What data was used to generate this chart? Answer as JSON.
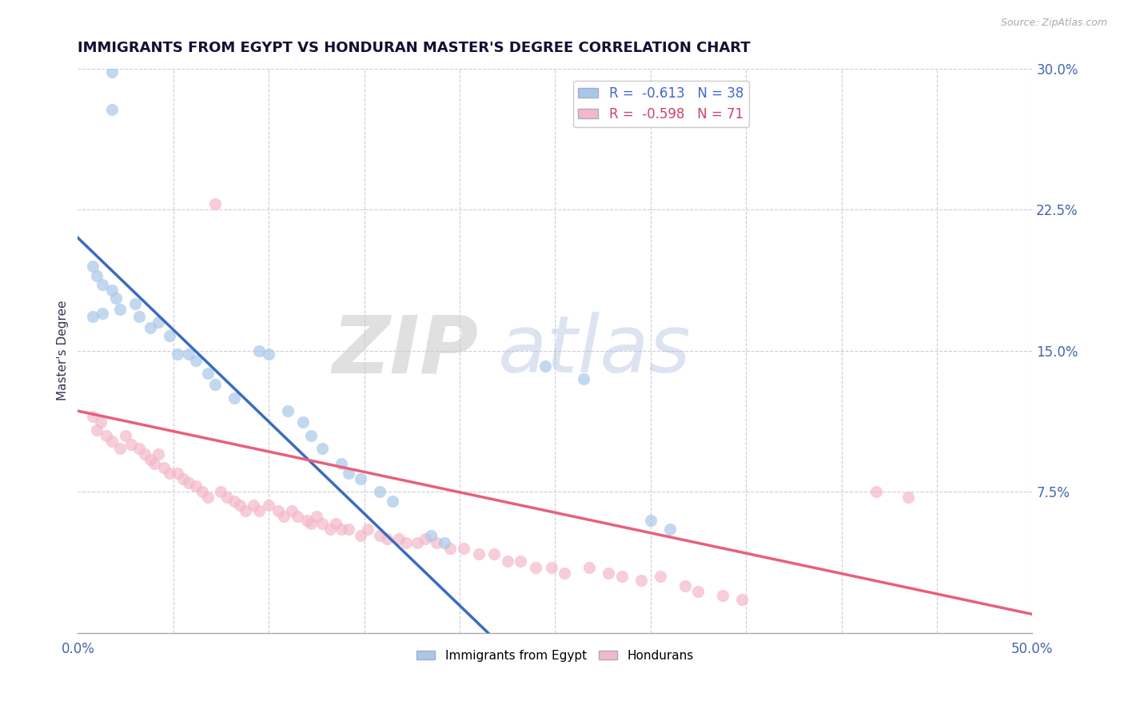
{
  "title": "IMMIGRANTS FROM EGYPT VS HONDURAN MASTER'S DEGREE CORRELATION CHART",
  "source_text": "Source: ZipAtlas.com",
  "ylabel": "Master's Degree",
  "xlim": [
    0.0,
    0.5
  ],
  "ylim": [
    0.0,
    0.3
  ],
  "xticks": [
    0.0,
    0.05,
    0.1,
    0.15,
    0.2,
    0.25,
    0.3,
    0.35,
    0.4,
    0.45,
    0.5
  ],
  "yticks_right": [
    0.0,
    0.075,
    0.15,
    0.225,
    0.3
  ],
  "ytick_labels_right": [
    "",
    "7.5%",
    "15.0%",
    "22.5%",
    "30.0%"
  ],
  "legend_r1": "R =  -0.613   N = 38",
  "legend_r2": "R =  -0.598   N = 71",
  "color_blue": "#a8c8e8",
  "color_pink": "#f4b8c8",
  "color_blue_line": "#3a6bc0",
  "color_pink_line": "#e8607a",
  "blue_scatter_x": [
    0.018,
    0.018,
    0.008,
    0.01,
    0.013,
    0.018,
    0.02,
    0.022,
    0.013,
    0.008,
    0.03,
    0.032,
    0.038,
    0.042,
    0.048,
    0.052,
    0.058,
    0.062,
    0.068,
    0.072,
    0.082,
    0.095,
    0.1,
    0.11,
    0.118,
    0.122,
    0.128,
    0.138,
    0.142,
    0.148,
    0.158,
    0.165,
    0.185,
    0.192,
    0.245,
    0.265,
    0.3,
    0.31
  ],
  "blue_scatter_y": [
    0.298,
    0.278,
    0.195,
    0.19,
    0.185,
    0.182,
    0.178,
    0.172,
    0.17,
    0.168,
    0.175,
    0.168,
    0.162,
    0.165,
    0.158,
    0.148,
    0.148,
    0.145,
    0.138,
    0.132,
    0.125,
    0.15,
    0.148,
    0.118,
    0.112,
    0.105,
    0.098,
    0.09,
    0.085,
    0.082,
    0.075,
    0.07,
    0.052,
    0.048,
    0.142,
    0.135,
    0.06,
    0.055
  ],
  "pink_scatter_x": [
    0.008,
    0.01,
    0.012,
    0.015,
    0.018,
    0.022,
    0.025,
    0.028,
    0.032,
    0.035,
    0.038,
    0.04,
    0.042,
    0.045,
    0.048,
    0.052,
    0.055,
    0.058,
    0.062,
    0.065,
    0.068,
    0.072,
    0.075,
    0.078,
    0.082,
    0.085,
    0.088,
    0.092,
    0.095,
    0.1,
    0.105,
    0.108,
    0.112,
    0.115,
    0.12,
    0.122,
    0.125,
    0.128,
    0.132,
    0.135,
    0.138,
    0.142,
    0.148,
    0.152,
    0.158,
    0.162,
    0.168,
    0.172,
    0.178,
    0.182,
    0.188,
    0.195,
    0.202,
    0.21,
    0.218,
    0.225,
    0.232,
    0.24,
    0.248,
    0.255,
    0.268,
    0.278,
    0.285,
    0.295,
    0.305,
    0.318,
    0.325,
    0.338,
    0.348,
    0.418,
    0.435
  ],
  "pink_scatter_y": [
    0.115,
    0.108,
    0.112,
    0.105,
    0.102,
    0.098,
    0.105,
    0.1,
    0.098,
    0.095,
    0.092,
    0.09,
    0.095,
    0.088,
    0.085,
    0.085,
    0.082,
    0.08,
    0.078,
    0.075,
    0.072,
    0.228,
    0.075,
    0.072,
    0.07,
    0.068,
    0.065,
    0.068,
    0.065,
    0.068,
    0.065,
    0.062,
    0.065,
    0.062,
    0.06,
    0.058,
    0.062,
    0.058,
    0.055,
    0.058,
    0.055,
    0.055,
    0.052,
    0.055,
    0.052,
    0.05,
    0.05,
    0.048,
    0.048,
    0.05,
    0.048,
    0.045,
    0.045,
    0.042,
    0.042,
    0.038,
    0.038,
    0.035,
    0.035,
    0.032,
    0.035,
    0.032,
    0.03,
    0.028,
    0.03,
    0.025,
    0.022,
    0.02,
    0.018,
    0.075,
    0.072
  ],
  "blue_line_x": [
    0.0,
    0.215
  ],
  "blue_line_y": [
    0.21,
    0.0
  ],
  "pink_line_x": [
    0.0,
    0.5
  ],
  "pink_line_y": [
    0.118,
    0.01
  ]
}
